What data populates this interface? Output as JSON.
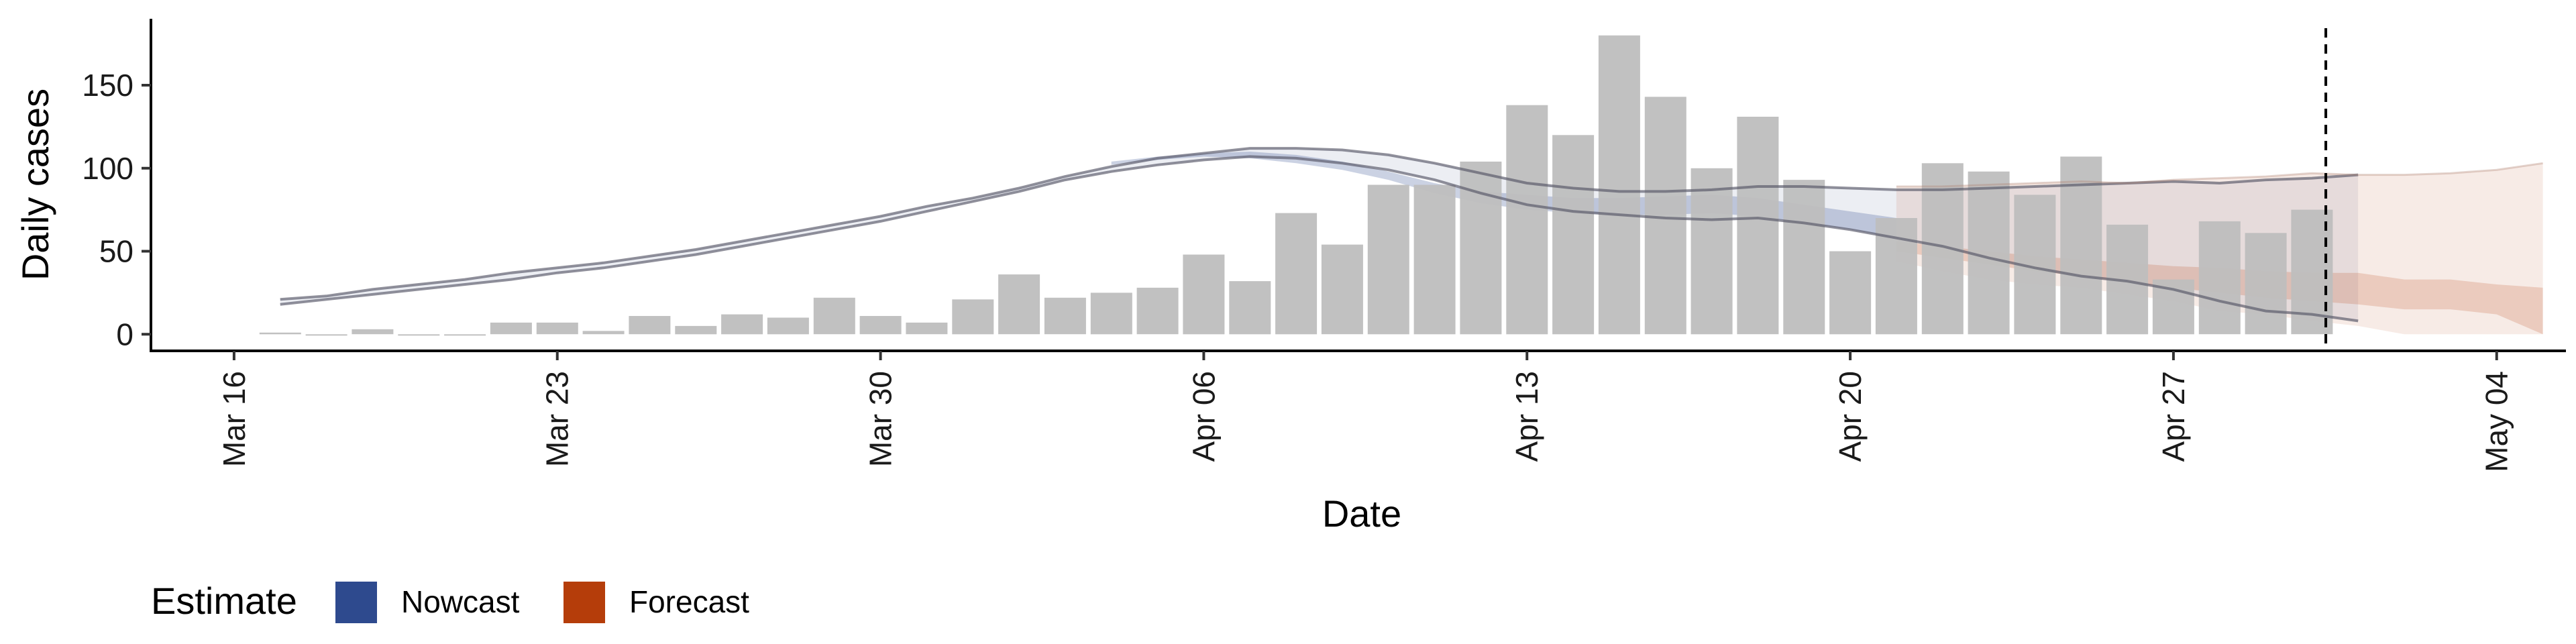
{
  "chart_data": {
    "type": "bar",
    "xlabel": "Date",
    "ylabel": "Daily cases",
    "xlim": [
      -1.8,
      50.5
    ],
    "ylim": [
      -10,
      190
    ],
    "x_ticks": [
      {
        "day": 0,
        "label": "Mar 16"
      },
      {
        "day": 7,
        "label": "Mar 23"
      },
      {
        "day": 14,
        "label": "Mar 30"
      },
      {
        "day": 21,
        "label": "Apr 06"
      },
      {
        "day": 28,
        "label": "Apr 13"
      },
      {
        "day": 35,
        "label": "Apr 20"
      },
      {
        "day": 42,
        "label": "Apr 27"
      },
      {
        "day": 49,
        "label": "May 04"
      }
    ],
    "y_ticks": [
      0,
      50,
      100,
      150
    ],
    "cases": {
      "name": "Reported cases",
      "color": "#bebebe",
      "start_day": 1,
      "values": [
        1,
        0,
        3,
        0,
        0,
        7,
        7,
        2,
        11,
        5,
        12,
        10,
        22,
        11,
        7,
        21,
        36,
        22,
        25,
        28,
        48,
        32,
        73,
        54,
        90,
        90,
        104,
        138,
        120,
        180,
        143,
        100,
        131,
        93,
        50,
        70,
        103,
        98,
        84,
        107,
        66,
        33,
        68,
        61,
        75
      ]
    },
    "estimate_band": {
      "start_day": 1,
      "lower": [
        18,
        21,
        24,
        27,
        30,
        33,
        37,
        40,
        44,
        48,
        53,
        58,
        63,
        68,
        74,
        80,
        86,
        93,
        98,
        102,
        105,
        107,
        106,
        103,
        99,
        93,
        85,
        78,
        74,
        72,
        70,
        69,
        70,
        67,
        63,
        58,
        53,
        46,
        40,
        35,
        32,
        27,
        20,
        14,
        12,
        8
      ],
      "upper": [
        21,
        23,
        27,
        30,
        33,
        37,
        40,
        43,
        47,
        51,
        56,
        61,
        66,
        71,
        77,
        82,
        88,
        95,
        101,
        106,
        109,
        112,
        112,
        111,
        108,
        103,
        97,
        91,
        88,
        86,
        86,
        87,
        89,
        89,
        88,
        87,
        87,
        88,
        89,
        90,
        91,
        92,
        91,
        93,
        94,
        96
      ]
    },
    "nowcast_band": {
      "start_day": 19,
      "lower": [
        102,
        105,
        107,
        106,
        103,
        99,
        93,
        85,
        79,
        75,
        73,
        72,
        72,
        73,
        71,
        67,
        63,
        58
      ],
      "upper": [
        104,
        107,
        109,
        110,
        108,
        104,
        98,
        91,
        86,
        84,
        82,
        82,
        83,
        84,
        82,
        78,
        74,
        70
      ]
    },
    "forecast_band_outer": {
      "start_day": 36,
      "lower": [
        44,
        38,
        33,
        30,
        28,
        24,
        20,
        14,
        12,
        8,
        5,
        0,
        0,
        0,
        0
      ],
      "upper": [
        89,
        89,
        90,
        91,
        92,
        91,
        93,
        94,
        95,
        97,
        96,
        96,
        97,
        99,
        103
      ]
    },
    "forecast_band_inner": {
      "start_day": 36,
      "lower": [
        50,
        46,
        42,
        38,
        35,
        31,
        28,
        25,
        22,
        20,
        18,
        15,
        15,
        12,
        0
      ],
      "upper": [
        56,
        53,
        50,
        47,
        45,
        43,
        41,
        40,
        38,
        37,
        37,
        33,
        33,
        30,
        28
      ]
    },
    "vline": {
      "day": 45.3,
      "style": "dashed"
    },
    "legend": {
      "title": "Estimate",
      "position": "bottom-left",
      "entries": [
        {
          "label": "Nowcast",
          "color": "#2e4a8e"
        },
        {
          "label": "Forecast",
          "color": "#b53d0a"
        }
      ]
    }
  }
}
